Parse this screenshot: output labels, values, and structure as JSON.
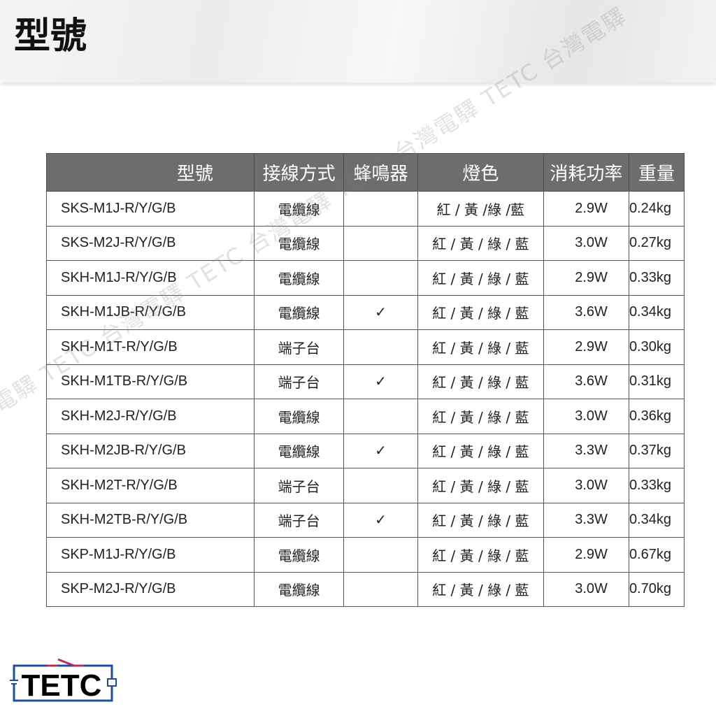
{
  "title": "型號",
  "table": {
    "headers": [
      "型號",
      "接線方式",
      "蜂鳴器",
      "燈色",
      "消耗功率",
      "重量"
    ],
    "rows": [
      {
        "model": "SKS-M1J-R/Y/G/B",
        "wiring": "電纜線",
        "buzzer": "",
        "color": "紅 / 黃 /綠 /藍",
        "power": "2.9W",
        "weight": "0.24kg"
      },
      {
        "model": "SKS-M2J-R/Y/G/B",
        "wiring": "電纜線",
        "buzzer": "",
        "color": "紅 / 黃 / 綠 / 藍",
        "power": "3.0W",
        "weight": "0.27kg"
      },
      {
        "model": "SKH-M1J-R/Y/G/B",
        "wiring": "電纜線",
        "buzzer": "",
        "color": "紅 / 黃 / 綠 / 藍",
        "power": "2.9W",
        "weight": "0.33kg"
      },
      {
        "model": "SKH-M1JB-R/Y/G/B",
        "wiring": "電纜線",
        "buzzer": "✓",
        "color": "紅 / 黃 / 綠 / 藍",
        "power": "3.6W",
        "weight": "0.34kg"
      },
      {
        "model": "SKH-M1T-R/Y/G/B",
        "wiring": "端子台",
        "buzzer": "",
        "color": "紅 / 黃 / 綠 / 藍",
        "power": "2.9W",
        "weight": "0.30kg"
      },
      {
        "model": "SKH-M1TB-R/Y/G/B",
        "wiring": "端子台",
        "buzzer": "✓",
        "color": "紅 / 黃 / 綠 / 藍",
        "power": "3.6W",
        "weight": "0.31kg"
      },
      {
        "model": "SKH-M2J-R/Y/G/B",
        "wiring": "電纜線",
        "buzzer": "",
        "color": "紅 / 黃 / 綠 / 藍",
        "power": "3.0W",
        "weight": "0.36kg"
      },
      {
        "model": "SKH-M2JB-R/Y/G/B",
        "wiring": "電纜線",
        "buzzer": "✓",
        "color": "紅 / 黃 / 綠 / 藍",
        "power": "3.3W",
        "weight": "0.37kg"
      },
      {
        "model": "SKH-M2T-R/Y/G/B",
        "wiring": "端子台",
        "buzzer": "",
        "color": "紅 / 黃 / 綠 / 藍",
        "power": "3.0W",
        "weight": "0.33kg"
      },
      {
        "model": "SKH-M2TB-R/Y/G/B",
        "wiring": "端子台",
        "buzzer": "✓",
        "color": "紅 / 黃 / 綠 / 藍",
        "power": "3.3W",
        "weight": "0.34kg"
      },
      {
        "model": "SKP-M1J-R/Y/G/B",
        "wiring": "電纜線",
        "buzzer": "",
        "color": "紅 / 黃 / 綠 / 藍",
        "power": "2.9W",
        "weight": "0.67kg"
      },
      {
        "model": "SKP-M2J-R/Y/G/B",
        "wiring": "電纜線",
        "buzzer": "",
        "color": "紅 / 黃 / 綠 / 藍",
        "power": "3.0W",
        "weight": "0.70kg"
      }
    ]
  },
  "watermark": "電驛 TETC 台灣電驛 TETC 台灣電驛 TETC 台灣電驛 TETC 台灣電驛",
  "logo": {
    "text": "TETC",
    "frame_color": "#1f4e9c",
    "switch_color": "#b0305a"
  },
  "colors": {
    "header_bg": "#6d6d6f",
    "header_text": "#ffffff"
  }
}
